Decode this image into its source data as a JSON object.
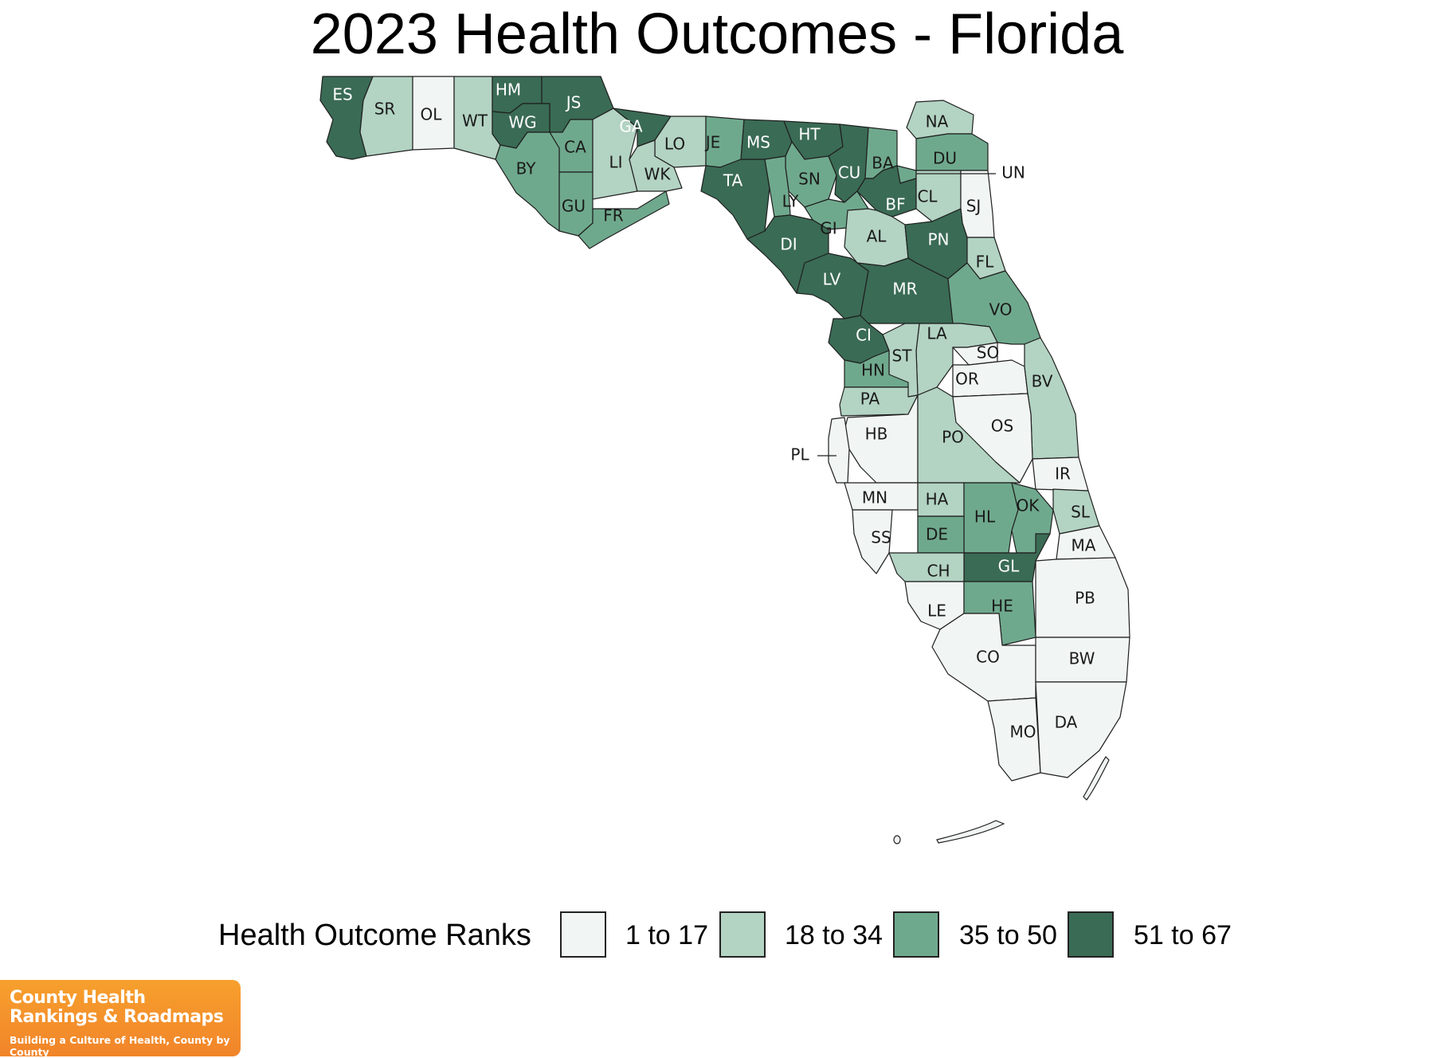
{
  "title": "2023 Health Outcomes - Florida",
  "colors": {
    "rank_1_17": "#f1f5f3",
    "rank_18_34": "#b3d3c3",
    "rank_35_50": "#6fa98d",
    "rank_51_67": "#3a6b55",
    "label_dark_bg": "#ffffff",
    "label_light_bg": "#1a1a1a",
    "border": "#1f1f1f",
    "logo_orange": "#f39a2c"
  },
  "legend": {
    "title": "Health Outcome Ranks",
    "items": [
      {
        "label": "1 to 17",
        "color": "#f1f5f3"
      },
      {
        "label": "18 to 34",
        "color": "#b3d3c3"
      },
      {
        "label": "35 to 50",
        "color": "#6fa98d"
      },
      {
        "label": "51 to 67",
        "color": "#3a6b55"
      }
    ]
  },
  "counties": [
    {
      "abbr": "ES",
      "bucket": 4
    },
    {
      "abbr": "SR",
      "bucket": 2
    },
    {
      "abbr": "OL",
      "bucket": 1
    },
    {
      "abbr": "WT",
      "bucket": 2
    },
    {
      "abbr": "HM",
      "bucket": 4
    },
    {
      "abbr": "JS",
      "bucket": 4
    },
    {
      "abbr": "WG",
      "bucket": 4
    },
    {
      "abbr": "CA",
      "bucket": 3
    },
    {
      "abbr": "BY",
      "bucket": 3
    },
    {
      "abbr": "GU",
      "bucket": 3
    },
    {
      "abbr": "FR",
      "bucket": 3
    },
    {
      "abbr": "LI",
      "bucket": 2
    },
    {
      "abbr": "GA",
      "bucket": 4
    },
    {
      "abbr": "LO",
      "bucket": 2
    },
    {
      "abbr": "WK",
      "bucket": 2
    },
    {
      "abbr": "JE",
      "bucket": 3
    },
    {
      "abbr": "TA",
      "bucket": 4
    },
    {
      "abbr": "MS",
      "bucket": 4
    },
    {
      "abbr": "HT",
      "bucket": 4
    },
    {
      "abbr": "SN",
      "bucket": 3
    },
    {
      "abbr": "LY",
      "bucket": 3
    },
    {
      "abbr": "CU",
      "bucket": 4
    },
    {
      "abbr": "BA",
      "bucket": 3
    },
    {
      "abbr": "NA",
      "bucket": 2
    },
    {
      "abbr": "DU",
      "bucket": 3
    },
    {
      "abbr": "UN",
      "bucket": 3
    },
    {
      "abbr": "BF",
      "bucket": 4
    },
    {
      "abbr": "CL",
      "bucket": 2
    },
    {
      "abbr": "SJ",
      "bucket": 1
    },
    {
      "abbr": "GI",
      "bucket": 3
    },
    {
      "abbr": "AL",
      "bucket": 2
    },
    {
      "abbr": "PN",
      "bucket": 4
    },
    {
      "abbr": "FL",
      "bucket": 2
    },
    {
      "abbr": "DI",
      "bucket": 4
    },
    {
      "abbr": "LV",
      "bucket": 4
    },
    {
      "abbr": "MR",
      "bucket": 4
    },
    {
      "abbr": "VO",
      "bucket": 3
    },
    {
      "abbr": "CI",
      "bucket": 4
    },
    {
      "abbr": "LA",
      "bucket": 2
    },
    {
      "abbr": "ST",
      "bucket": 2
    },
    {
      "abbr": "SO",
      "bucket": 1
    },
    {
      "abbr": "HN",
      "bucket": 3
    },
    {
      "abbr": "OR",
      "bucket": 1
    },
    {
      "abbr": "BV",
      "bucket": 2
    },
    {
      "abbr": "PA",
      "bucket": 2
    },
    {
      "abbr": "HB",
      "bucket": 1
    },
    {
      "abbr": "PO",
      "bucket": 2
    },
    {
      "abbr": "OS",
      "bucket": 1
    },
    {
      "abbr": "PL",
      "bucket": 1
    },
    {
      "abbr": "IR",
      "bucket": 1
    },
    {
      "abbr": "MN",
      "bucket": 1
    },
    {
      "abbr": "HA",
      "bucket": 2
    },
    {
      "abbr": "HL",
      "bucket": 3
    },
    {
      "abbr": "OK",
      "bucket": 3
    },
    {
      "abbr": "SL",
      "bucket": 2
    },
    {
      "abbr": "SS",
      "bucket": 1
    },
    {
      "abbr": "DE",
      "bucket": 3
    },
    {
      "abbr": "MA",
      "bucket": 1
    },
    {
      "abbr": "GL",
      "bucket": 4
    },
    {
      "abbr": "CH",
      "bucket": 2
    },
    {
      "abbr": "PB",
      "bucket": 1
    },
    {
      "abbr": "LE",
      "bucket": 1
    },
    {
      "abbr": "HE",
      "bucket": 3
    },
    {
      "abbr": "CO",
      "bucket": 1
    },
    {
      "abbr": "BW",
      "bucket": 1
    },
    {
      "abbr": "MO",
      "bucket": 1
    },
    {
      "abbr": "DA",
      "bucket": 1
    }
  ],
  "logo": {
    "line1": "County Health",
    "line2": "Rankings & Roadmaps",
    "tagline": "Building a Culture of Health, County by County"
  }
}
